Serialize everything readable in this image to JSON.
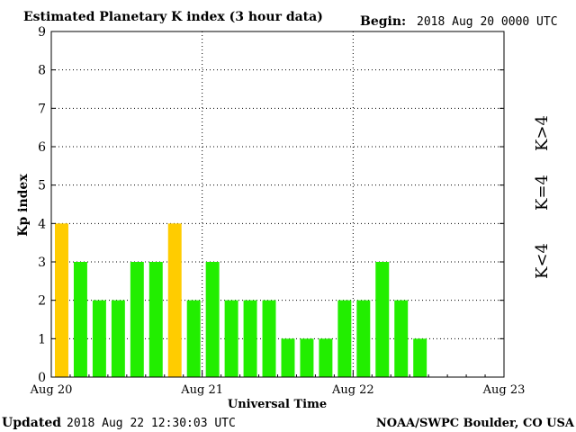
{
  "header": {
    "title": "Estimated Planetary K index (3 hour data)",
    "begin_label": "Begin:",
    "begin_value": "2018 Aug 20 0000 UTC"
  },
  "footer": {
    "updated_label": "Updated",
    "updated_value": "2018 Aug 22 12:30:03 UTC",
    "source": "NOAA/SWPC Boulder, CO USA"
  },
  "legend": {
    "high": {
      "label": "K>4",
      "color": "#ff2a00"
    },
    "equal": {
      "label": "K=4",
      "color": "#ffcc00"
    },
    "low": {
      "label": "K<4",
      "color": "#22ee00"
    }
  },
  "chart_data": {
    "type": "bar",
    "title": "Estimated Planetary K index (3 hour data)",
    "xlabel": "Universal Time",
    "ylabel": "Kp index",
    "ylim": [
      0,
      9
    ],
    "yticks": [
      0,
      1,
      2,
      3,
      4,
      5,
      6,
      7,
      8,
      9
    ],
    "xticks": [
      "Aug 20",
      "Aug 21",
      "Aug 22",
      "Aug 23"
    ],
    "bins_per_day": 8,
    "grid": "dotted",
    "values": [
      4,
      3,
      2,
      2,
      3,
      3,
      4,
      2,
      3,
      2,
      2,
      2,
      1,
      1,
      1,
      2,
      2,
      3,
      2,
      1
    ],
    "colors": {
      "below4": "#22ee00",
      "equal4": "#ffcc00",
      "above4": "#ff2a00",
      "axis": "#000000",
      "grid": "#000000"
    }
  }
}
